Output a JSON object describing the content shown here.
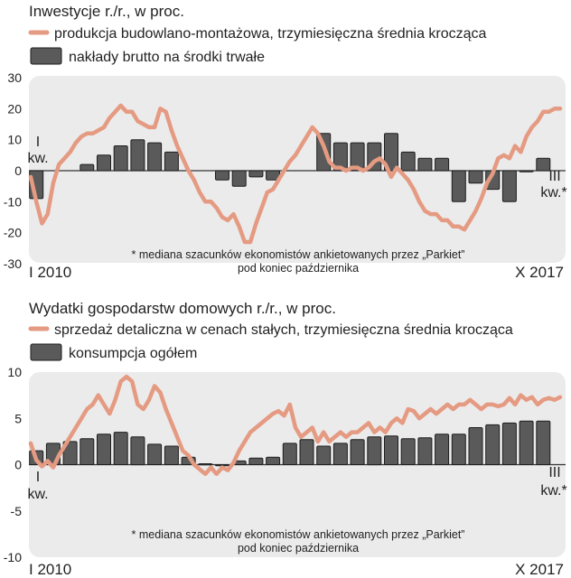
{
  "colors": {
    "line": "#e59a82",
    "bar": "#5a5a5a",
    "bar_stroke": "#1e1e1e",
    "panel_bg": "#ebebeb",
    "zero_line": "#333333",
    "text": "#222222"
  },
  "chart_data": [
    {
      "type": "bar",
      "title": "Inwestycje r./r., w proc.",
      "legend": {
        "line_label": "produkcja budowlano-montażowa, trzymiesięczna średnia krocząca",
        "bar_label": "nakłady brutto na środki trwałe"
      },
      "ylim": [
        -30,
        30
      ],
      "y_ticks": [
        "30",
        "20",
        "10",
        "0",
        "-10",
        "-20",
        "-30"
      ],
      "x_start_label": "I 2010",
      "x_end_label": "X 2017",
      "start_note": [
        "I",
        "kw."
      ],
      "end_note": [
        "III",
        "kw.*"
      ],
      "footnote": [
        "* mediana szacunków ekonomistów ankietowanych przez „Parkiet”",
        "pod koniec października"
      ],
      "x_range": [
        0,
        94
      ],
      "series": [
        {
          "name": "produkcja budowlano-montażowa, trzymiesięczna średnia krocząca",
          "kind": "line",
          "x": [
            0,
            1,
            2,
            3,
            4,
            5,
            6,
            7,
            8,
            9,
            10,
            11,
            12,
            13,
            14,
            15,
            16,
            17,
            18,
            19,
            20,
            21,
            22,
            23,
            24,
            25,
            26,
            27,
            28,
            29,
            30,
            31,
            32,
            33,
            34,
            35,
            36,
            37,
            38,
            39,
            40,
            41,
            42,
            43,
            44,
            45,
            46,
            47,
            48,
            49,
            50,
            51,
            52,
            53,
            54,
            55,
            56,
            57,
            58,
            59,
            60,
            61,
            62,
            63,
            64,
            65,
            66,
            67,
            68,
            69,
            70,
            71,
            72,
            73,
            74,
            75,
            76,
            77,
            78,
            79,
            80,
            81,
            82,
            83,
            84,
            85,
            86,
            87,
            88,
            89,
            90,
            91,
            92,
            93,
            94
          ],
          "values": [
            -2,
            -10,
            -17,
            -14,
            -4,
            2,
            4,
            6,
            9,
            11,
            12,
            12,
            13,
            14,
            17,
            19,
            21,
            19,
            19,
            16,
            15,
            14,
            14,
            20,
            19,
            13,
            8,
            4,
            0,
            -3,
            -7,
            -10,
            -10,
            -12,
            -15,
            -16,
            -14,
            -18,
            -23,
            -23,
            -17,
            -12,
            -7,
            -6,
            -3,
            0,
            3,
            5,
            8,
            11,
            14,
            12,
            8,
            3,
            1,
            1,
            0,
            1,
            1,
            0,
            1,
            3,
            4,
            2,
            -2,
            1,
            -1,
            -3,
            -6,
            -10,
            -13,
            -14,
            -14,
            -16,
            -16,
            -18,
            -18,
            -19,
            -16,
            -13,
            -9,
            -4,
            -1,
            4,
            5,
            4,
            8,
            6,
            11,
            14,
            16,
            19,
            19,
            20,
            20
          ]
        },
        {
          "name": "nakłady brutto na środki trwałe",
          "kind": "bar",
          "x": [
            1,
            10,
            13,
            16,
            19,
            22,
            25,
            34,
            37,
            40,
            43,
            52,
            55,
            58,
            61,
            64,
            67,
            70,
            73,
            76,
            79,
            82,
            85,
            88,
            91
          ],
          "values": [
            -9,
            2,
            5,
            8,
            10,
            9,
            6,
            -3,
            -5,
            -2,
            -3,
            12,
            9,
            9,
            9,
            12,
            6,
            4,
            4,
            -10,
            -4,
            -6,
            -10,
            0,
            4
          ]
        }
      ]
    },
    {
      "type": "bar",
      "title": "Wydatki gospodarstw domowych r./r., w proc.",
      "legend": {
        "line_label": "sprzedaż detaliczna w cenach stałych, trzymiesięczna średnia krocząca",
        "bar_label": "konsumpcja ogółem"
      },
      "ylim": [
        -10,
        10
      ],
      "y_ticks": [
        "10",
        "5",
        "0",
        "-5",
        "-10"
      ],
      "x_start_label": "I 2010",
      "x_end_label": "X 2017",
      "start_note": [
        "I",
        "kw."
      ],
      "end_note": [
        "III",
        "kw.*"
      ],
      "footnote": [
        "* mediana szacunków ekonomistów ankietowanych przez „Parkiet”",
        "pod koniec października"
      ],
      "x_range": [
        0,
        94
      ],
      "series": [
        {
          "name": "sprzedaż detaliczna w cenach stałych, trzymiesięczna średnia krocząca",
          "kind": "line",
          "x": [
            0,
            1,
            2,
            3,
            4,
            5,
            6,
            7,
            8,
            9,
            10,
            11,
            12,
            13,
            14,
            15,
            16,
            17,
            18,
            19,
            20,
            21,
            22,
            23,
            24,
            25,
            26,
            27,
            28,
            29,
            30,
            31,
            32,
            33,
            34,
            35,
            36,
            37,
            38,
            39,
            40,
            41,
            42,
            43,
            44,
            45,
            46,
            47,
            48,
            49,
            50,
            51,
            52,
            53,
            54,
            55,
            56,
            57,
            58,
            59,
            60,
            61,
            62,
            63,
            64,
            65,
            66,
            67,
            68,
            69,
            70,
            71,
            72,
            73,
            74,
            75,
            76,
            77,
            78,
            79,
            80,
            81,
            82,
            83,
            84,
            85,
            86,
            87,
            88,
            89,
            90,
            91,
            92,
            93,
            94
          ],
          "values": [
            2.3,
            0.5,
            -0.2,
            0.4,
            -0.3,
            1.0,
            2.0,
            3.0,
            4.0,
            5.0,
            6.0,
            6.5,
            7.5,
            6.5,
            5.5,
            7.0,
            9.0,
            9.5,
            9.0,
            6.5,
            6.0,
            7.0,
            8.5,
            7.8,
            6.0,
            4.5,
            3.0,
            1.5,
            1.0,
            0.0,
            -0.5,
            -1.0,
            -0.3,
            -1.0,
            -0.3,
            -0.6,
            0.2,
            1.5,
            2.5,
            3.5,
            4.0,
            4.5,
            5.0,
            5.5,
            5.8,
            5.3,
            6.5,
            4.0,
            3.0,
            3.5,
            4.0,
            2.5,
            3.5,
            2.5,
            3.0,
            3.5,
            3.0,
            3.5,
            3.5,
            4.0,
            4.5,
            3.5,
            4.0,
            3.5,
            4.5,
            5.0,
            4.5,
            6.0,
            5.8,
            5.0,
            5.5,
            6.0,
            5.5,
            6.0,
            6.5,
            6.0,
            6.5,
            6.5,
            7.0,
            6.5,
            6.0,
            6.5,
            6.5,
            6.3,
            6.5,
            7.2,
            6.5,
            7.5,
            7.0,
            7.3,
            6.5,
            7.0,
            7.2,
            7.0,
            7.3
          ]
        },
        {
          "name": "konsumpcja ogółem",
          "kind": "bar",
          "x": [
            1,
            4,
            7,
            10,
            13,
            16,
            19,
            22,
            25,
            28,
            31,
            34,
            37,
            40,
            43,
            46,
            49,
            52,
            55,
            58,
            61,
            64,
            67,
            70,
            73,
            76,
            79,
            82,
            85,
            88,
            91
          ],
          "values": [
            1.5,
            2.3,
            2.5,
            2.8,
            3.3,
            3.5,
            3.0,
            2.2,
            2.0,
            0.8,
            0.1,
            0.0,
            0.4,
            0.7,
            0.8,
            2.3,
            2.7,
            2.0,
            2.3,
            2.7,
            3.0,
            3.1,
            2.8,
            2.9,
            3.3,
            3.3,
            4.0,
            4.3,
            4.5,
            4.7,
            4.7
          ]
        }
      ]
    }
  ]
}
